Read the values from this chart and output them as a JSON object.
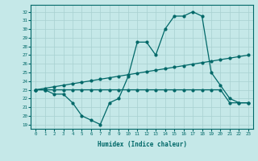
{
  "xlabel": "Humidex (Indice chaleur)",
  "bg_color": "#c5e8e8",
  "grid_color": "#a8d0d0",
  "line_color": "#006868",
  "x_ticks": [
    0,
    1,
    2,
    3,
    4,
    5,
    6,
    7,
    8,
    9,
    10,
    11,
    12,
    13,
    14,
    15,
    16,
    17,
    18,
    19,
    20,
    21,
    22,
    23
  ],
  "y_ticks": [
    19,
    20,
    21,
    22,
    23,
    24,
    25,
    26,
    27,
    28,
    29,
    30,
    31,
    32
  ],
  "ylim": [
    18.5,
    32.8
  ],
  "xlim": [
    -0.5,
    23.5
  ],
  "y_jagged": [
    23,
    23,
    22.5,
    22.5,
    21.5,
    20,
    19.5,
    19,
    21.5,
    22,
    24.5,
    28.5,
    28.5,
    27,
    30,
    31.5,
    31.5,
    32,
    31.5,
    25,
    23.5,
    22,
    21.5,
    21.5
  ],
  "y_upper": [
    23,
    23.17,
    23.35,
    23.52,
    23.7,
    23.87,
    24.04,
    24.22,
    24.39,
    24.57,
    24.74,
    24.91,
    25.09,
    25.26,
    25.43,
    25.61,
    25.78,
    25.96,
    26.13,
    26.3,
    26.48,
    26.65,
    26.83,
    27.0
  ],
  "y_lower": [
    23,
    23,
    23,
    23,
    23,
    23,
    23,
    23,
    23,
    23,
    23,
    23,
    23,
    23,
    23,
    23,
    23,
    23,
    23,
    23,
    23,
    21.5,
    21.5,
    21.5
  ]
}
